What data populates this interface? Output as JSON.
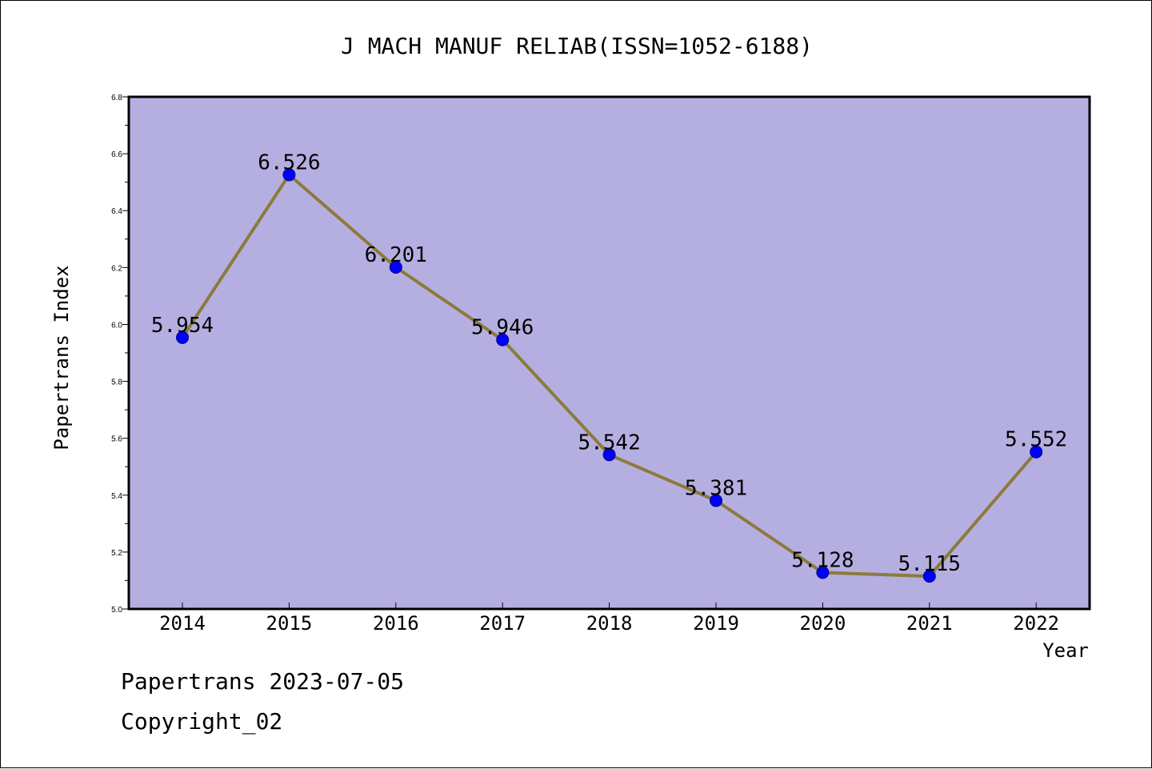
{
  "chart_data": {
    "type": "line",
    "title": "J MACH MANUF RELIAB(ISSN=1052-6188)",
    "xlabel": "Year",
    "ylabel": "Papertrans Index",
    "categories": [
      "2014",
      "2015",
      "2016",
      "2017",
      "2018",
      "2019",
      "2020",
      "2021",
      "2022"
    ],
    "series": [
      {
        "values": [
          5.954,
          6.526,
          6.201,
          5.946,
          5.542,
          5.381,
          5.128,
          5.115,
          5.552
        ]
      }
    ],
    "data_labels": [
      "5.954",
      "6.526",
      "6.201",
      "5.946",
      "5.542",
      "5.381",
      "5.128",
      "5.115",
      "5.552"
    ],
    "ylim": [
      5.0,
      6.8
    ],
    "y_ticks": [
      "5.0",
      "5.2",
      "5.4",
      "5.6",
      "5.8",
      "6.0",
      "6.2",
      "6.4",
      "6.6",
      "6.8"
    ],
    "grid": false,
    "legend": "none",
    "colors": {
      "plot_background": "#b5afe1",
      "line": "#8c7a3a",
      "marker": "#0000ff",
      "marker_edge": "#000080"
    }
  },
  "footer": {
    "line1": "Papertrans 2023-07-05",
    "line2": "Copyright_02"
  }
}
